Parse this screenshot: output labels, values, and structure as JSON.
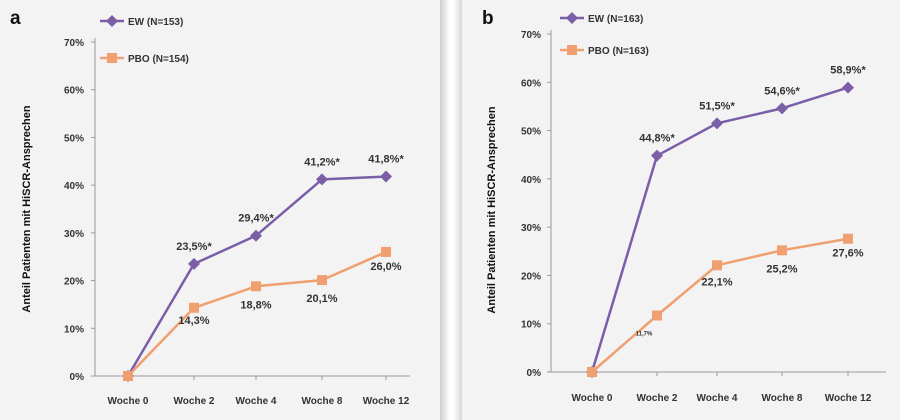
{
  "colors": {
    "ew": "#7a5ea8",
    "pbo": "#f0a070",
    "axis": "#999999",
    "text": "#333333"
  },
  "chart_data": [
    {
      "type": "line",
      "panel_label": "a",
      "categories": [
        "Woche 0",
        "Woche 2",
        "Woche 4",
        "Woche 8",
        "Woche 12"
      ],
      "ylabel": "Anteil Patienten mit HiSCR-Ansprechen",
      "xlabel": "",
      "ylim": [
        0,
        70
      ],
      "yticks": [
        "0%",
        "10%",
        "20%",
        "30%",
        "40%",
        "50%",
        "60%",
        "70%"
      ],
      "legend_position": "top-left",
      "grid": false,
      "series": [
        {
          "name": "EW (N=153)",
          "marker": "diamond",
          "values": [
            0,
            23.5,
            29.4,
            41.2,
            41.8
          ],
          "labels": [
            "",
            "23,5%*",
            "29,4%*",
            "41,2%*",
            "41,8%*"
          ]
        },
        {
          "name": "PBO (N=154)",
          "marker": "square",
          "values": [
            0,
            14.3,
            18.8,
            20.1,
            26.0
          ],
          "labels": [
            "",
            "14,3%",
            "18,8%",
            "20,1%",
            "26,0%"
          ]
        }
      ]
    },
    {
      "type": "line",
      "panel_label": "b",
      "categories": [
        "Woche 0",
        "Woche 2",
        "Woche 4",
        "Woche 8",
        "Woche 12"
      ],
      "ylabel": "Anteil Patienten mit HiSCR-Ansprechen",
      "xlabel": "",
      "ylim": [
        0,
        70
      ],
      "yticks": [
        "0%",
        "10%",
        "20%",
        "30%",
        "40%",
        "50%",
        "60%",
        "70%"
      ],
      "legend_position": "top-left",
      "grid": false,
      "series": [
        {
          "name": "EW (N=163)",
          "marker": "diamond",
          "values": [
            0,
            44.8,
            51.5,
            54.6,
            58.9
          ],
          "labels": [
            "",
            "44,8%*",
            "51,5%*",
            "54,6%*",
            "58,9%*"
          ]
        },
        {
          "name": "PBO (N=163)",
          "marker": "square",
          "values": [
            0,
            11.7,
            22.1,
            25.2,
            27.6
          ],
          "labels": [
            "",
            "11,7%",
            "22,1%",
            "25,2%",
            "27,6%"
          ]
        }
      ]
    }
  ]
}
